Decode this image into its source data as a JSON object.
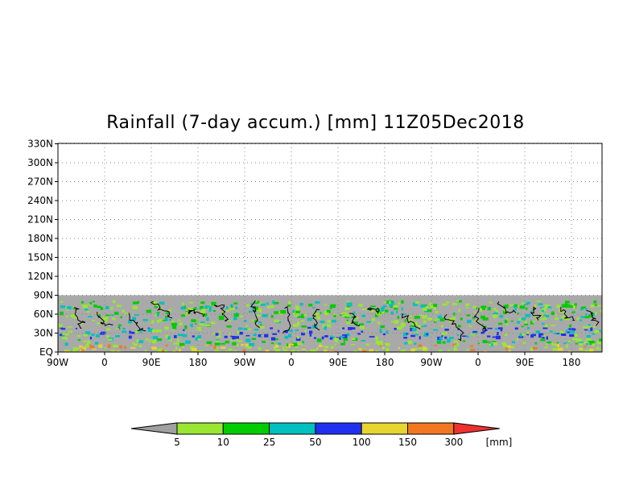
{
  "title": "Rainfall (7-day accum.) [mm] 11Z05Dec2018",
  "map": {
    "y_ticks": [
      "EQ",
      "30N",
      "60N",
      "90N",
      "120N",
      "150N",
      "180N",
      "210N",
      "240N",
      "270N",
      "300N",
      "330N"
    ],
    "x_ticks": [
      "90W",
      "0",
      "90E",
      "180",
      "90W",
      "0",
      "90E",
      "180",
      "90W",
      "0",
      "90E",
      "180"
    ],
    "no_data_color": "#a9a9a9",
    "grid": "dotted"
  },
  "colorbar": {
    "unit": "[mm]",
    "levels": [
      "5",
      "10",
      "25",
      "50",
      "100",
      "150",
      "300"
    ],
    "colors": [
      "#a0a0a0",
      "#99e633",
      "#00cc00",
      "#00c0c0",
      "#2030f0",
      "#e6d430",
      "#f07820",
      "#f03030"
    ]
  }
}
